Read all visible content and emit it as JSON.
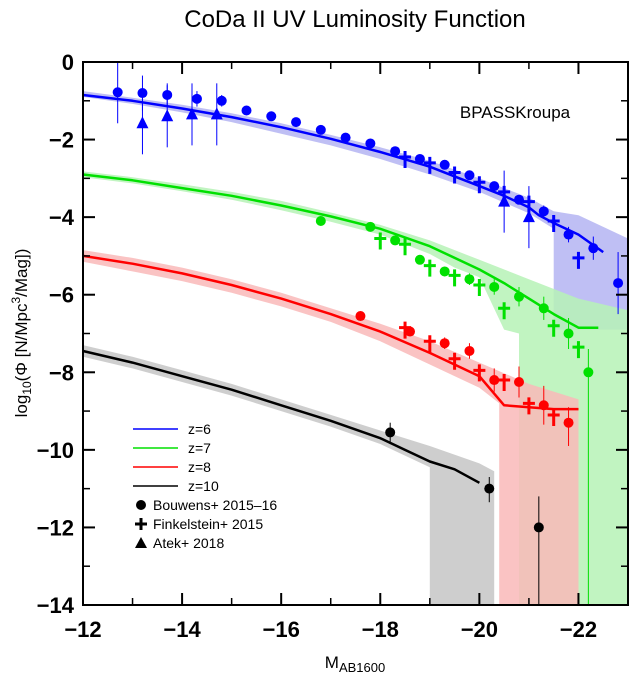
{
  "chart_data": {
    "type": "scatter",
    "title": "CoDa II UV Luminosity Function",
    "xlabel": "M",
    "xlabel_sub": "AB1600",
    "ylabel": "log",
    "ylabel_sub": "10",
    "ylabel_mid": "(Φ [N/Mpc",
    "ylabel_sup": "3",
    "ylabel_end": "/Mag])",
    "annotation": "BPASSKroupa",
    "xlim": [
      -12,
      -23
    ],
    "ylim": [
      -14,
      0
    ],
    "xticks": [
      -12,
      -14,
      -16,
      -18,
      -20,
      -22
    ],
    "xtick_labels": [
      "−12",
      "−14",
      "−16",
      "−18",
      "−20",
      "−22"
    ],
    "yticks": [
      0,
      -2,
      -4,
      -6,
      -8,
      -10,
      -12,
      -14
    ],
    "ytick_labels": [
      "0",
      "−2",
      "−4",
      "−6",
      "−8",
      "−10",
      "−12",
      "−14"
    ],
    "grid": false,
    "legend_position": "bottom-left",
    "legend": {
      "lines": [
        {
          "label": "z=6",
          "color": "#0000ff"
        },
        {
          "label": "z=7",
          "color": "#00e000"
        },
        {
          "label": "z=8",
          "color": "#ff0000"
        },
        {
          "label": "z=10",
          "color": "#000000"
        }
      ],
      "markers": [
        {
          "label": "Bouwens+ 2015–16",
          "marker": "circle"
        },
        {
          "label": "Finkelstein+ 2015",
          "marker": "cross"
        },
        {
          "label": "Atek+ 2018",
          "marker": "triangle"
        }
      ]
    },
    "series": [
      {
        "name": "z=6",
        "color": "#0000ff",
        "band_color": "#b4b4f2",
        "model": [
          [
            -12,
            -0.85
          ],
          [
            -13,
            -1.0
          ],
          [
            -14,
            -1.2
          ],
          [
            -15,
            -1.42
          ],
          [
            -16,
            -1.68
          ],
          [
            -17,
            -1.98
          ],
          [
            -18,
            -2.32
          ],
          [
            -19,
            -2.7
          ],
          [
            -19.5,
            -2.95
          ],
          [
            -20,
            -3.2
          ],
          [
            -20.5,
            -3.45
          ],
          [
            -21,
            -3.75
          ],
          [
            -21.2,
            -3.95
          ],
          [
            -21.5,
            -4.15
          ],
          [
            -22,
            -4.45
          ],
          [
            -22.5,
            -4.9
          ]
        ],
        "band_upper": [
          [
            -12,
            -0.75
          ],
          [
            -13,
            -0.92
          ],
          [
            -14,
            -1.1
          ],
          [
            -15,
            -1.32
          ],
          [
            -16,
            -1.58
          ],
          [
            -17,
            -1.88
          ],
          [
            -18,
            -2.2
          ],
          [
            -19,
            -2.55
          ],
          [
            -20,
            -3.0
          ],
          [
            -21,
            -3.5
          ],
          [
            -21.5,
            -3.85
          ],
          [
            -22,
            -3.95
          ],
          [
            -23,
            -4.55
          ]
        ],
        "band_lower": [
          [
            -12,
            -0.9
          ],
          [
            -13,
            -1.08
          ],
          [
            -14,
            -1.3
          ],
          [
            -15,
            -1.55
          ],
          [
            -16,
            -1.85
          ],
          [
            -17,
            -2.15
          ],
          [
            -18,
            -2.5
          ],
          [
            -19,
            -2.9
          ],
          [
            -20,
            -3.35
          ],
          [
            -21,
            -3.9
          ],
          [
            -21.5,
            -4.3
          ],
          [
            -21.5,
            -6.9
          ],
          [
            -23,
            -6.9
          ]
        ],
        "bouwens": [
          [
            -12.7,
            -0.78,
            0.85,
            0.8
          ],
          [
            -13.2,
            -0.8,
            0.45,
            0.45
          ],
          [
            -13.7,
            -0.85,
            0.3,
            0.3
          ],
          [
            -14.3,
            -0.95,
            0.2,
            0.2
          ],
          [
            -14.8,
            -1.0,
            0.15,
            0.15
          ],
          [
            -15.3,
            -1.25,
            0.1,
            0.1
          ],
          [
            -15.8,
            -1.4,
            0.08,
            0.08
          ],
          [
            -16.3,
            -1.55,
            0.08,
            0.08
          ],
          [
            -16.8,
            -1.75,
            0.07,
            0.07
          ],
          [
            -17.3,
            -1.95,
            0.06,
            0.06
          ],
          [
            -17.8,
            -2.1,
            0.06,
            0.06
          ],
          [
            -18.3,
            -2.3,
            0.06,
            0.06
          ],
          [
            -18.8,
            -2.5,
            0.07,
            0.07
          ],
          [
            -19.3,
            -2.65,
            0.08,
            0.08
          ],
          [
            -19.8,
            -2.92,
            0.08,
            0.08
          ],
          [
            -20.3,
            -3.2,
            0.1,
            0.1
          ],
          [
            -20.8,
            -3.55,
            0.12,
            0.12
          ],
          [
            -21.3,
            -3.85,
            0.15,
            0.15
          ],
          [
            -21.8,
            -4.45,
            0.2,
            0.2
          ],
          [
            -22.3,
            -4.8,
            0.3,
            0.3
          ],
          [
            -22.8,
            -5.7,
            0.8,
            0.8
          ]
        ],
        "finkelstein": [
          [
            -18.5,
            -2.45
          ],
          [
            -19.0,
            -2.6
          ],
          [
            -19.5,
            -2.85
          ],
          [
            -20.0,
            -3.1
          ],
          [
            -20.5,
            -3.35
          ],
          [
            -21.0,
            -3.6
          ],
          [
            -21.5,
            -4.1
          ],
          [
            -22.0,
            -5.05
          ]
        ],
        "atek": [
          [
            -13.2,
            -1.58
          ],
          [
            -13.7,
            -1.4
          ],
          [
            -14.2,
            -1.35
          ],
          [
            -14.7,
            -1.35
          ],
          [
            -20.5,
            -3.6
          ],
          [
            -21.0,
            -4.0
          ]
        ]
      },
      {
        "name": "z=7",
        "color": "#00e000",
        "band_color": "#b6f2b6",
        "model": [
          [
            -12,
            -2.9
          ],
          [
            -13,
            -3.05
          ],
          [
            -14,
            -3.25
          ],
          [
            -15,
            -3.45
          ],
          [
            -16,
            -3.7
          ],
          [
            -17,
            -3.98
          ],
          [
            -18,
            -4.3
          ],
          [
            -19,
            -4.75
          ],
          [
            -20,
            -5.35
          ],
          [
            -20.5,
            -5.7
          ],
          [
            -21,
            -6.1
          ],
          [
            -21.5,
            -6.5
          ],
          [
            -22,
            -6.85
          ],
          [
            -22.4,
            -6.85
          ]
        ],
        "band_upper": [
          [
            -12,
            -2.82
          ],
          [
            -13,
            -2.97
          ],
          [
            -14,
            -3.15
          ],
          [
            -15,
            -3.35
          ],
          [
            -16,
            -3.58
          ],
          [
            -17,
            -3.88
          ],
          [
            -18,
            -4.2
          ],
          [
            -19,
            -4.6
          ],
          [
            -20,
            -5.1
          ],
          [
            -21,
            -5.6
          ],
          [
            -22,
            -6.1
          ],
          [
            -23,
            -6.4
          ]
        ],
        "band_lower": [
          [
            -12,
            -2.97
          ],
          [
            -13,
            -3.13
          ],
          [
            -14,
            -3.33
          ],
          [
            -15,
            -3.55
          ],
          [
            -16,
            -3.82
          ],
          [
            -17,
            -4.12
          ],
          [
            -18,
            -4.45
          ],
          [
            -19,
            -4.95
          ],
          [
            -19.5,
            -5.3
          ],
          [
            -20,
            -5.55
          ],
          [
            -20.5,
            -6.9
          ],
          [
            -20.8,
            -7.0
          ],
          [
            -20.8,
            -14
          ],
          [
            -23,
            -14
          ]
        ],
        "bouwens": [
          [
            -16.8,
            -4.1,
            0.08,
            0.08
          ],
          [
            -17.8,
            -4.25,
            0.1,
            0.1
          ],
          [
            -18.3,
            -4.6,
            0.1,
            0.1
          ],
          [
            -18.8,
            -5.1,
            0.1,
            0.1
          ],
          [
            -19.3,
            -5.4,
            0.12,
            0.12
          ],
          [
            -19.8,
            -5.6,
            0.15,
            0.15
          ],
          [
            -20.3,
            -5.8,
            0.2,
            0.2
          ],
          [
            -20.8,
            -6.05,
            0.25,
            0.25
          ],
          [
            -21.3,
            -6.35,
            0.3,
            0.3
          ],
          [
            -21.8,
            -7.0,
            0.4,
            0.4
          ],
          [
            -22.2,
            -8.0,
            0.6,
            6.0
          ]
        ],
        "finkelstein": [
          [
            -18.0,
            -4.55
          ],
          [
            -18.5,
            -4.7
          ],
          [
            -19.0,
            -5.25
          ],
          [
            -19.5,
            -5.5
          ],
          [
            -20.0,
            -5.75
          ],
          [
            -20.5,
            -6.35
          ],
          [
            -21.5,
            -6.8
          ],
          [
            -22.0,
            -7.35
          ]
        ],
        "atek": []
      },
      {
        "name": "z=8",
        "color": "#ff0000",
        "band_color": "#f9b8b8",
        "model": [
          [
            -12,
            -5.0
          ],
          [
            -13,
            -5.2
          ],
          [
            -14,
            -5.45
          ],
          [
            -15,
            -5.75
          ],
          [
            -16,
            -6.1
          ],
          [
            -17,
            -6.5
          ],
          [
            -18,
            -6.95
          ],
          [
            -19,
            -7.5
          ],
          [
            -20,
            -8.1
          ],
          [
            -20.5,
            -8.85
          ],
          [
            -21,
            -8.9
          ],
          [
            -21.5,
            -8.95
          ],
          [
            -22,
            -8.95
          ]
        ],
        "band_upper": [
          [
            -12,
            -4.85
          ],
          [
            -13,
            -5.05
          ],
          [
            -14,
            -5.3
          ],
          [
            -15,
            -5.6
          ],
          [
            -16,
            -5.95
          ],
          [
            -17,
            -6.35
          ],
          [
            -18,
            -6.75
          ],
          [
            -19,
            -7.2
          ],
          [
            -20,
            -7.75
          ],
          [
            -21,
            -8.3
          ],
          [
            -22,
            -8.7
          ]
        ],
        "band_lower": [
          [
            -12,
            -5.15
          ],
          [
            -13,
            -5.4
          ],
          [
            -14,
            -5.65
          ],
          [
            -15,
            -5.95
          ],
          [
            -16,
            -6.3
          ],
          [
            -17,
            -6.7
          ],
          [
            -18,
            -7.2
          ],
          [
            -19,
            -7.8
          ],
          [
            -20,
            -8.4
          ],
          [
            -20.4,
            -8.8
          ],
          [
            -20.4,
            -14
          ],
          [
            -22,
            -14
          ]
        ],
        "bouwens": [
          [
            -17.6,
            -6.55,
            0.1,
            0.1
          ],
          [
            -18.6,
            -6.95,
            0.1,
            0.1
          ],
          [
            -19.3,
            -7.25,
            0.15,
            0.15
          ],
          [
            -19.8,
            -7.45,
            0.2,
            0.2
          ],
          [
            -20.3,
            -8.2,
            0.3,
            0.3
          ],
          [
            -20.8,
            -8.25,
            0.4,
            0.4
          ],
          [
            -21.3,
            -8.85,
            0.5,
            0.5
          ],
          [
            -21.8,
            -9.3,
            0.4,
            0.6
          ]
        ],
        "finkelstein": [
          [
            -18.5,
            -6.85
          ],
          [
            -19.0,
            -7.2
          ],
          [
            -19.5,
            -7.65
          ],
          [
            -20.0,
            -7.95
          ],
          [
            -20.5,
            -8.2
          ],
          [
            -21.0,
            -8.8
          ],
          [
            -21.5,
            -9.1
          ]
        ],
        "atek": []
      },
      {
        "name": "z=10",
        "color": "#000000",
        "band_color": "#c6c6c6",
        "model": [
          [
            -12,
            -7.45
          ],
          [
            -13,
            -7.75
          ],
          [
            -14,
            -8.1
          ],
          [
            -15,
            -8.45
          ],
          [
            -16,
            -8.85
          ],
          [
            -17,
            -9.25
          ],
          [
            -18,
            -9.7
          ],
          [
            -18.5,
            -10.0
          ],
          [
            -19,
            -10.3
          ],
          [
            -19.5,
            -10.5
          ],
          [
            -20,
            -10.85
          ]
        ],
        "band_upper": [
          [
            -12,
            -7.3
          ],
          [
            -13,
            -7.6
          ],
          [
            -14,
            -7.95
          ],
          [
            -15,
            -8.3
          ],
          [
            -16,
            -8.7
          ],
          [
            -17,
            -9.1
          ],
          [
            -18,
            -9.5
          ],
          [
            -19,
            -9.9
          ],
          [
            -20,
            -10.35
          ]
        ],
        "band_lower": [
          [
            -12,
            -7.6
          ],
          [
            -13,
            -7.9
          ],
          [
            -14,
            -8.25
          ],
          [
            -15,
            -8.6
          ],
          [
            -16,
            -9.0
          ],
          [
            -17,
            -9.4
          ],
          [
            -18,
            -9.85
          ],
          [
            -19,
            -10.45
          ],
          [
            -19,
            -14
          ],
          [
            -20.3,
            -14
          ],
          [
            -20.3,
            -10.55
          ]
        ],
        "bouwens": [
          [
            -18.2,
            -9.55,
            0.25,
            0.3
          ],
          [
            -20.2,
            -11.0,
            0.3,
            0.35
          ],
          [
            -21.2,
            -12.0,
            0.8,
            2.0
          ]
        ],
        "finkelstein": [],
        "atek": []
      }
    ]
  }
}
